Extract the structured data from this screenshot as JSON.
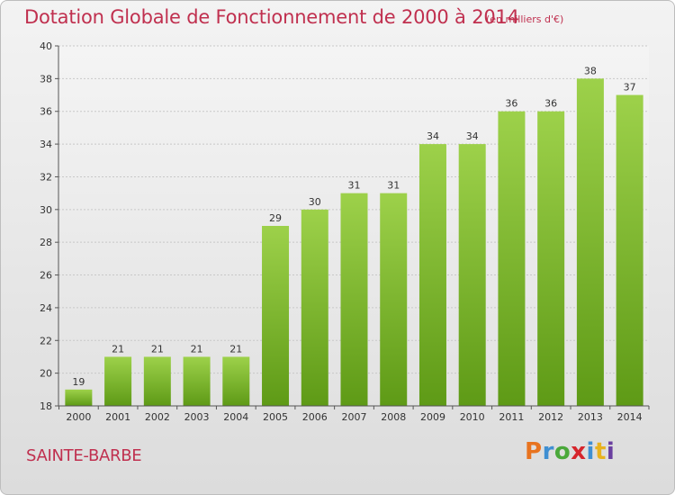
{
  "header": {
    "title": "Dotation Globale de Fonctionnement de 2000 à 2014",
    "subtitle": "(en milliers d'€)"
  },
  "footer": {
    "commune": "SAINTE-BARBE",
    "logo": "Proxiti",
    "logo_colors": [
      "#e8731f",
      "#3f8fd2",
      "#4aa83a",
      "#d6252c",
      "#3f8fd2",
      "#e8b21f",
      "#6a3fa0"
    ]
  },
  "chart_data": {
    "type": "bar",
    "categories": [
      "2000",
      "2001",
      "2002",
      "2003",
      "2004",
      "2005",
      "2006",
      "2007",
      "2008",
      "2009",
      "2010",
      "2011",
      "2012",
      "2013",
      "2014"
    ],
    "values": [
      19,
      21,
      21,
      21,
      21,
      29,
      30,
      31,
      31,
      34,
      34,
      36,
      36,
      38,
      37
    ],
    "title": "Dotation Globale de Fonctionnement de 2000 à 2014",
    "subtitle": "(en milliers d'€)",
    "xlabel": "",
    "ylabel": "",
    "ylim": [
      18,
      40
    ],
    "yticks": [
      18,
      20,
      22,
      24,
      26,
      28,
      30,
      32,
      34,
      36,
      38,
      40
    ],
    "grid": true,
    "bar_color_top": "#9dd14a",
    "bar_color_bottom": "#5e9a16"
  }
}
